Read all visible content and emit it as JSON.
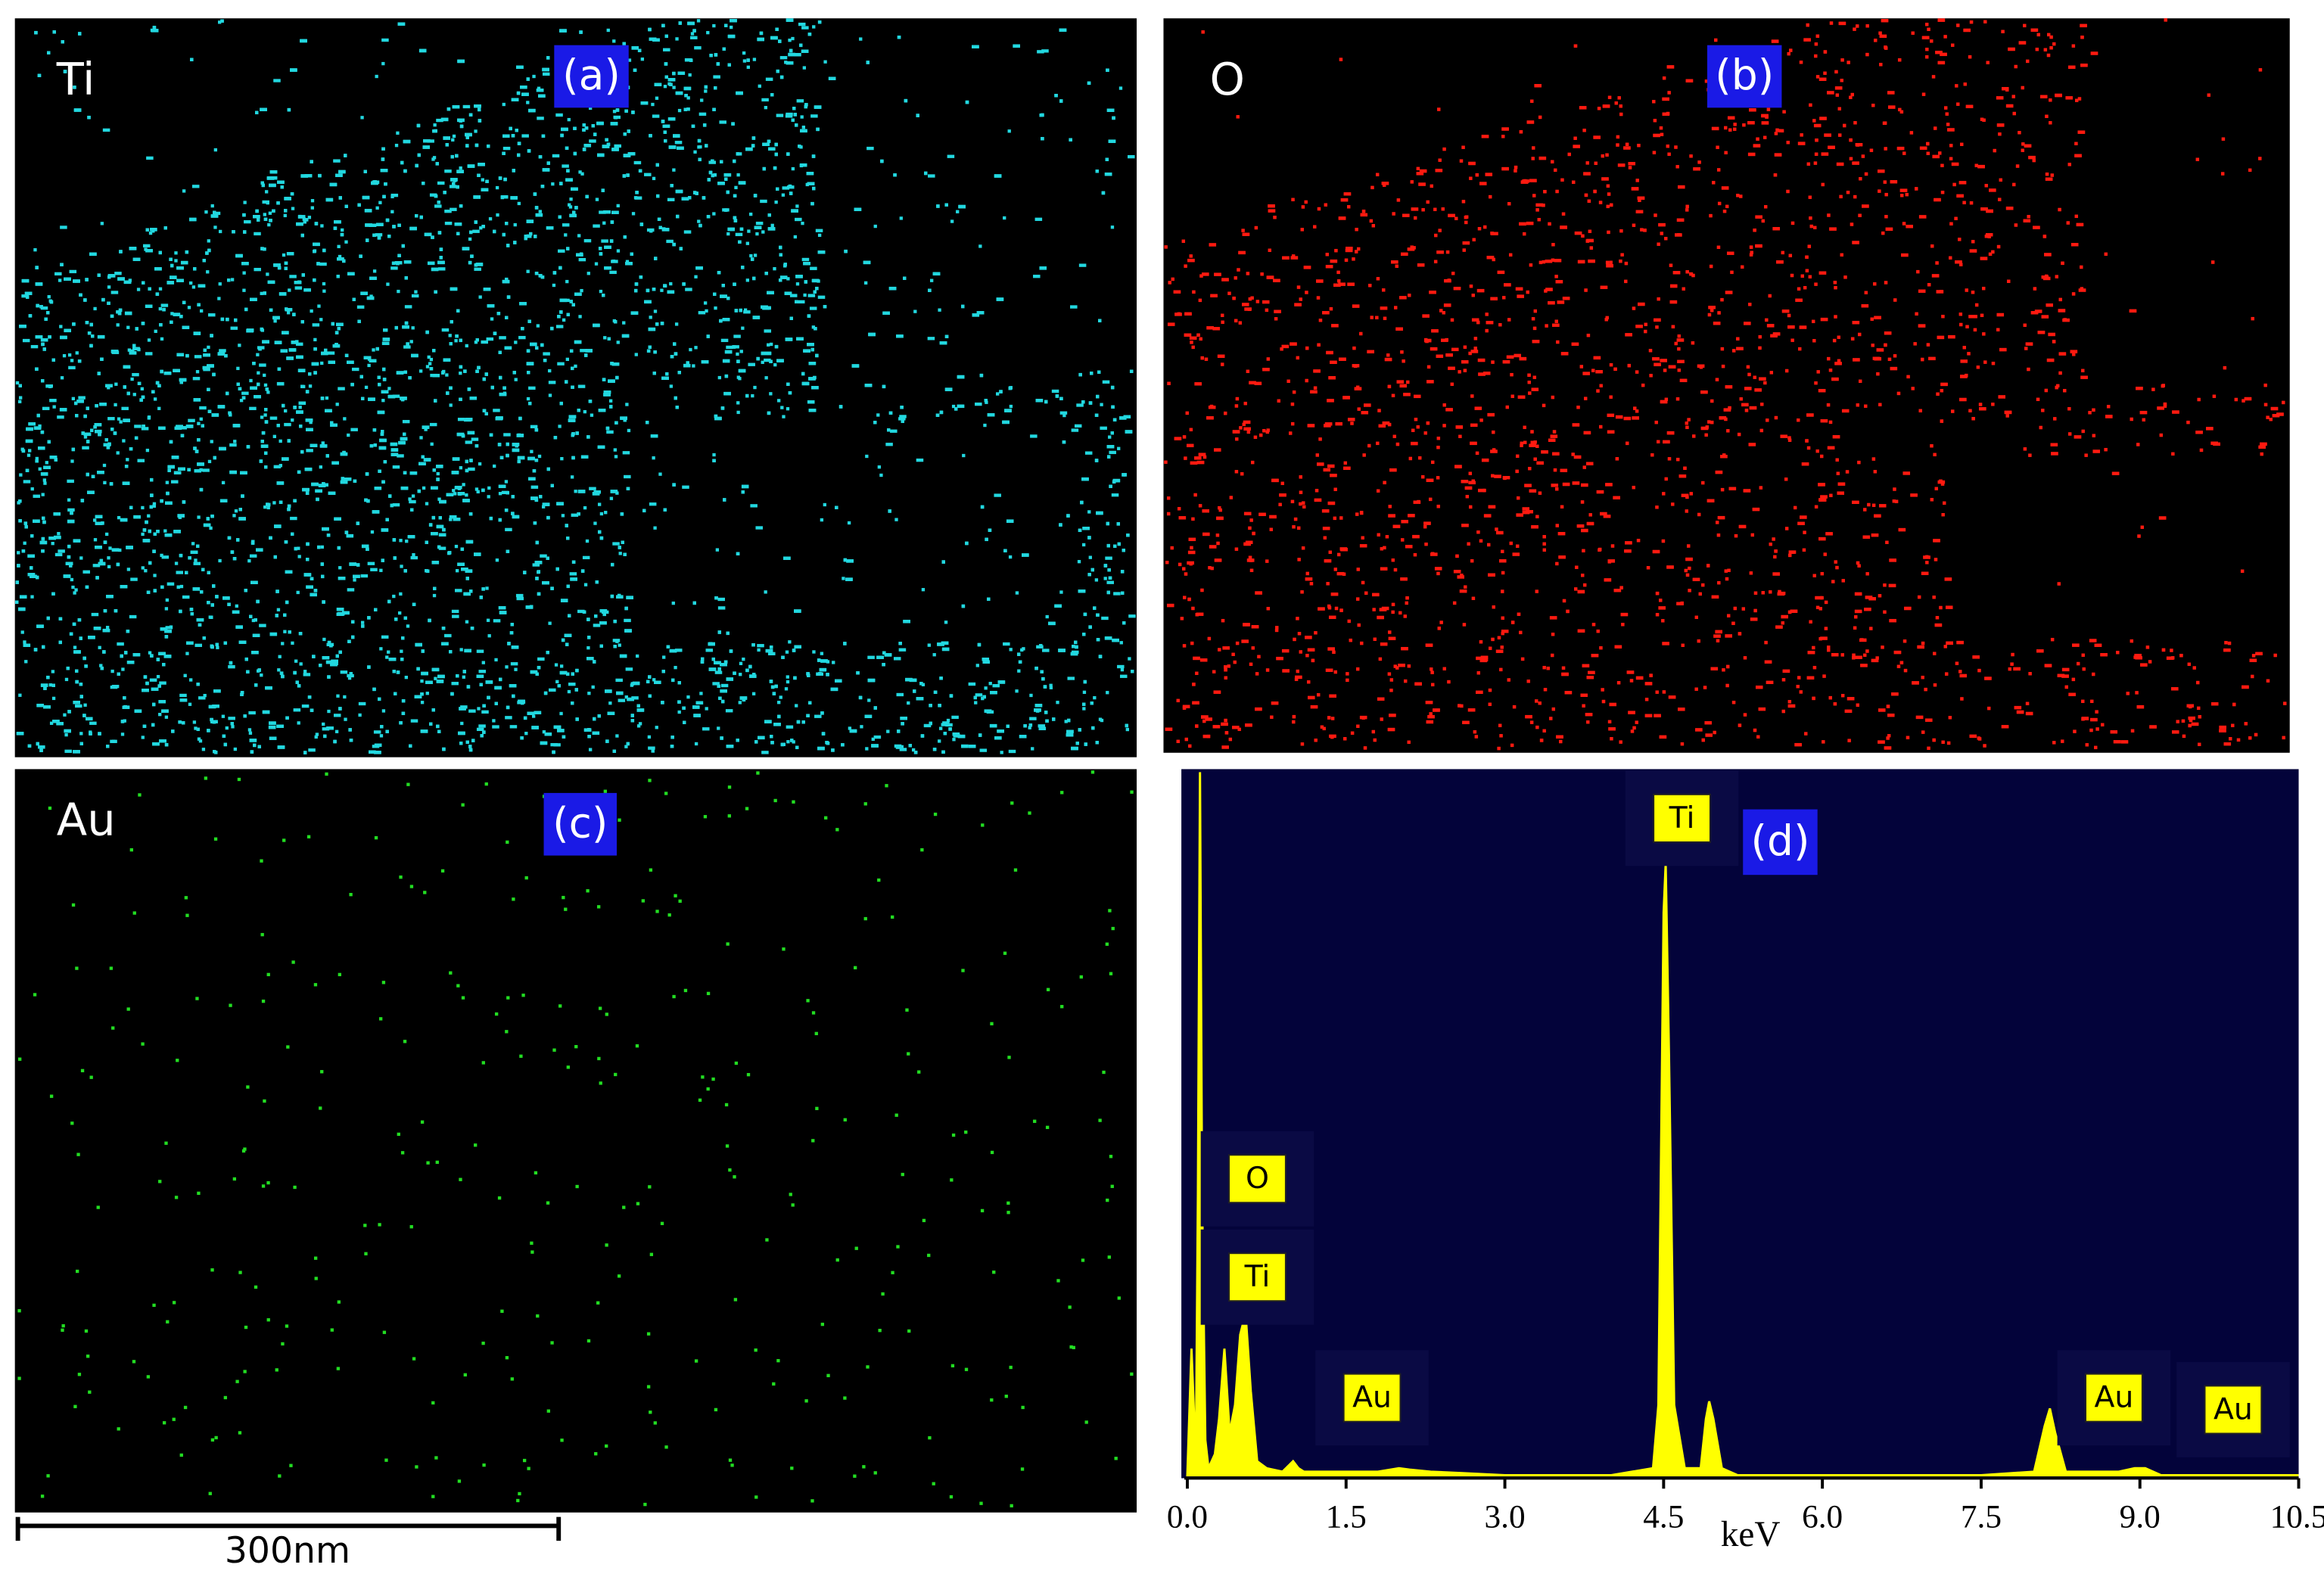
{
  "panels": [
    {
      "element": "Ti",
      "label": "(a)",
      "color": "#22d8e0"
    },
    {
      "element": "O",
      "label": "(b)",
      "color": "#ff1a10"
    },
    {
      "element": "Au",
      "label": "(c)",
      "color": "#22dd22"
    }
  ],
  "scale_bar": "300nm",
  "chart_data": {
    "type": "line",
    "panel_label": "(d)",
    "x_label": "keV",
    "color": "#ffff00",
    "background": "#03033a",
    "x": [
      0,
      0.04,
      0.08,
      0.1,
      0.12,
      0.14,
      0.17,
      0.2,
      0.26,
      0.3,
      0.35,
      0.4,
      0.45,
      0.5,
      0.55,
      0.6,
      0.66,
      0.75,
      0.9,
      1.0,
      1.05,
      1.1,
      1.3,
      1.5,
      1.8,
      2.0,
      2.1,
      2.3,
      2.6,
      3.0,
      4.0,
      4.4,
      4.45,
      4.5,
      4.52,
      4.55,
      4.6,
      4.7,
      4.85,
      4.9,
      4.93,
      4.97,
      5.05,
      5.2,
      6.0,
      7.5,
      8.0,
      8.1,
      8.15,
      8.2,
      8.3,
      8.5,
      8.8,
      8.95,
      9.05,
      9.2,
      10.5
    ],
    "values": [
      0,
      18,
      2,
      40,
      100,
      40,
      5,
      1,
      3,
      8,
      18,
      6,
      10,
      20,
      23,
      12,
      2,
      1,
      0.5,
      2,
      1,
      0.5,
      0.5,
      0.5,
      0.5,
      1,
      0.8,
      0.5,
      0.3,
      0,
      0,
      1,
      10,
      80,
      87,
      60,
      10,
      1,
      1,
      8,
      10.5,
      8,
      1,
      0,
      0,
      0,
      0.5,
      7,
      9.5,
      6,
      0.5,
      0.5,
      0.5,
      1,
      1,
      0,
      0
    ],
    "xlim": [
      0,
      10.5
    ],
    "ylim": [
      0,
      100
    ],
    "xticks": [
      {
        "value": 0,
        "label": "0.0"
      },
      1.5,
      {
        "value": 3,
        "label": "3.0"
      },
      4.5,
      {
        "value": 6,
        "label": "6.0"
      },
      7.5,
      {
        "value": 9,
        "label": "9.0"
      },
      10.5
    ],
    "annotations": [
      "Ti",
      "O",
      "Ti",
      "Au",
      "Au",
      "Au"
    ]
  }
}
